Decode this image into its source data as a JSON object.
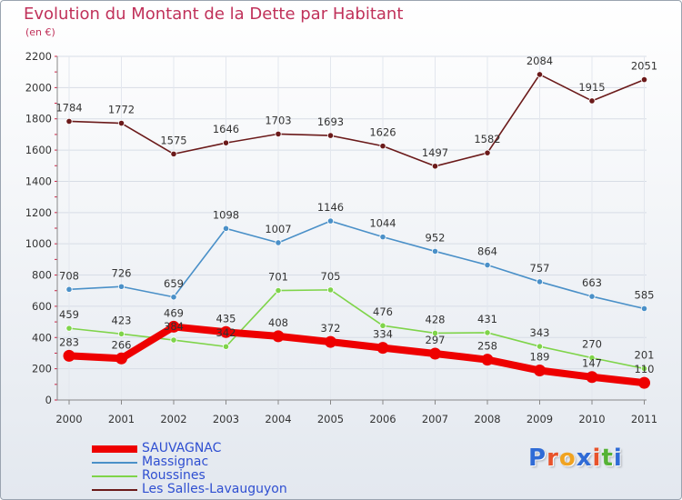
{
  "header": {
    "title": "Evolution du Montant de la Dette par Habitant",
    "subtitle": "(en €)"
  },
  "logo": {
    "text": "Proxiti",
    "colors": [
      "#2f6bd6",
      "#e8532b",
      "#f0a321",
      "#2f6bd6",
      "#e8532b",
      "#55b235",
      "#2f6bd6"
    ]
  },
  "chart_data": {
    "type": "line",
    "title": "Evolution du Montant de la Dette par Habitant",
    "subtitle": "(en €)",
    "xlabel": "",
    "ylabel": "",
    "ylim": [
      0,
      2200
    ],
    "yticks": [
      0,
      200,
      400,
      600,
      800,
      1000,
      1200,
      1400,
      1600,
      1800,
      2000,
      2200
    ],
    "categories": [
      "2000",
      "2001",
      "2002",
      "2003",
      "2004",
      "2005",
      "2006",
      "2007",
      "2008",
      "2009",
      "2010",
      "2011"
    ],
    "grid": true,
    "legend_position": "bottom-left",
    "series": [
      {
        "name": "SAUVAGNAC",
        "color": "#ee0000",
        "emphasis": true,
        "values": [
          283,
          266,
          469,
          435,
          408,
          372,
          334,
          297,
          258,
          189,
          147,
          110
        ]
      },
      {
        "name": "Massignac",
        "color": "#4a90c8",
        "values": [
          708,
          726,
          659,
          1098,
          1007,
          1146,
          1044,
          952,
          864,
          757,
          663,
          585
        ]
      },
      {
        "name": "Roussines",
        "color": "#7fd44a",
        "values": [
          459,
          423,
          384,
          342,
          701,
          705,
          476,
          428,
          431,
          343,
          270,
          201
        ]
      },
      {
        "name": "Les Salles-Lavauguyon",
        "color": "#6b1a1a",
        "values": [
          1784,
          1772,
          1575,
          1646,
          1703,
          1693,
          1626,
          1497,
          1582,
          2084,
          1915,
          2051
        ]
      }
    ]
  }
}
